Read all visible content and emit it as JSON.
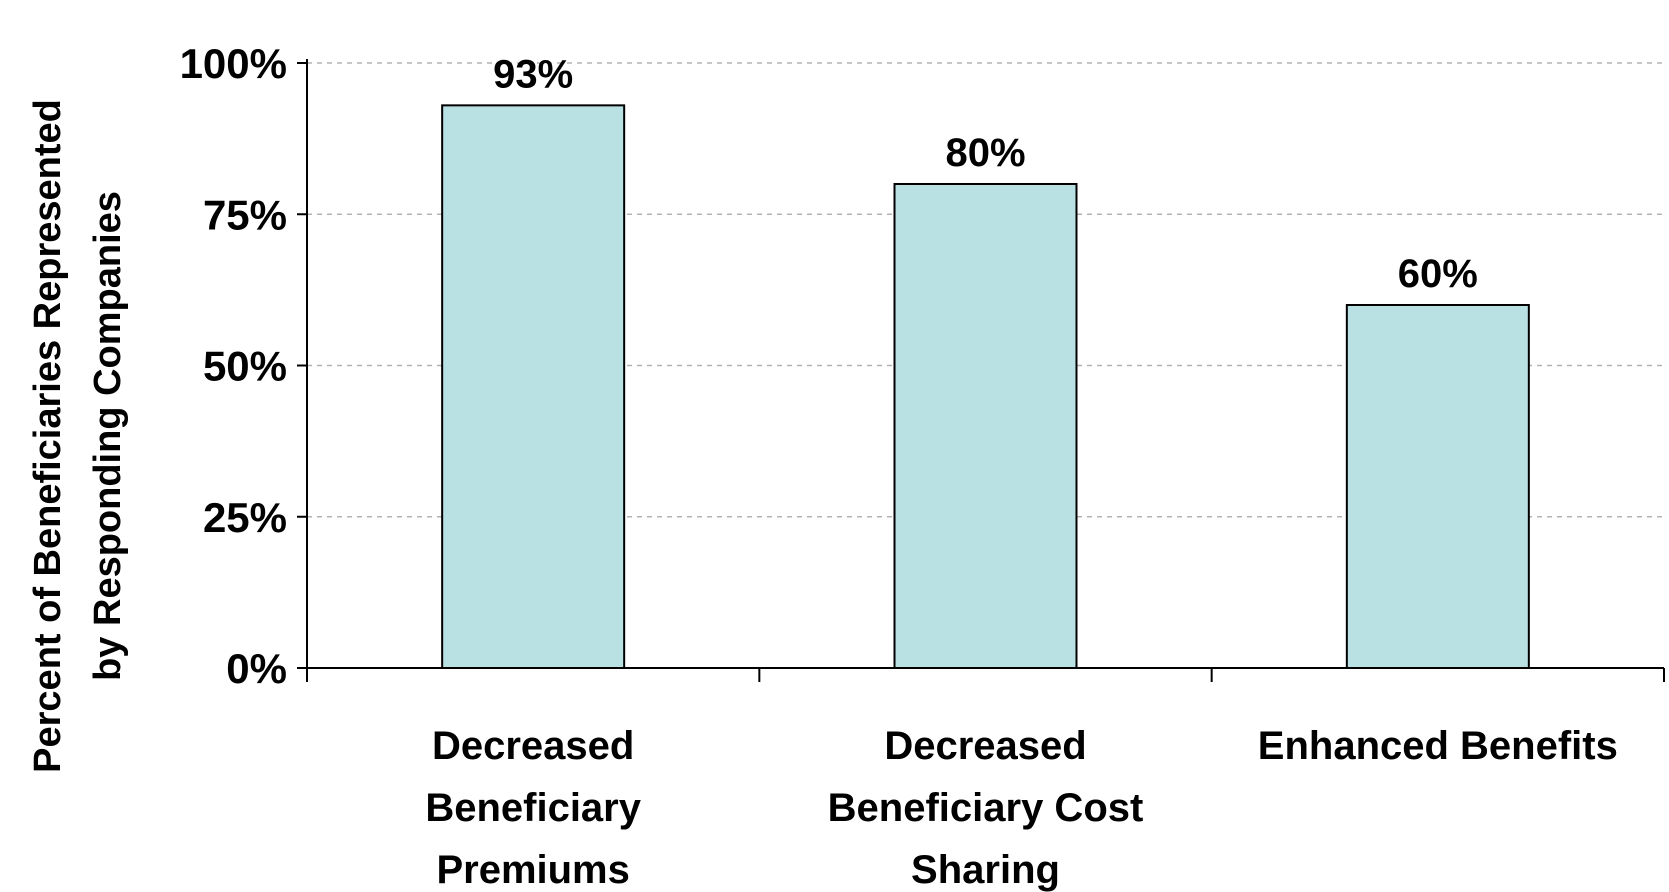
{
  "chart_data": {
    "type": "bar",
    "categories": [
      [
        "Decreased",
        "Beneficiary",
        "Premiums"
      ],
      [
        "Decreased",
        "Beneficiary Cost",
        "Sharing"
      ],
      [
        "Enhanced Benefits"
      ]
    ],
    "values": [
      93,
      80,
      60
    ],
    "data_labels": [
      "93%",
      "80%",
      "60%"
    ],
    "ylabel": [
      "Percent of Beneficiaries Represented",
      "by Responding Companies"
    ],
    "ylim": [
      0,
      100
    ],
    "yticks": [
      0,
      25,
      50,
      75,
      100
    ],
    "ytick_labels": [
      "0%",
      "25%",
      "50%",
      "75%",
      "100%"
    ],
    "grid": "horizontal dashed",
    "legend": "none",
    "colors": {
      "bar_fill": "#b9e0e3",
      "bar_stroke": "#000000",
      "grid": "#b3b3b3"
    }
  }
}
